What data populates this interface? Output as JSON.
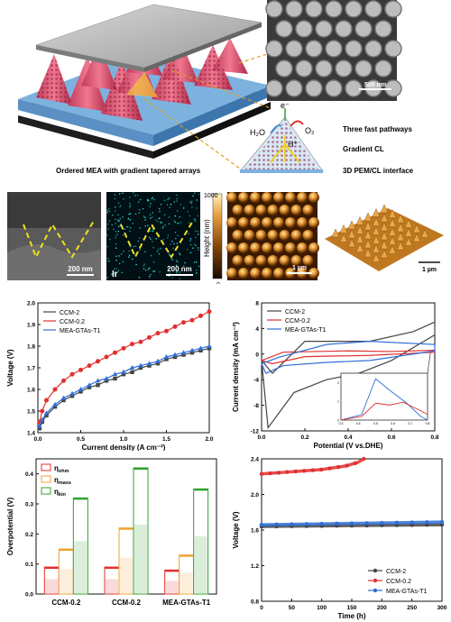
{
  "schematic": {
    "caption": "Ordered MEA with gradient tapered arrays",
    "pathways": "Three fast pathways",
    "gradient": "Gradient CL",
    "interface": "3D PEM/CL interface",
    "h2o": "H₂O",
    "electron": "e⁻",
    "o2": "O₂",
    "proton": "H⁺",
    "sem_scale": "500 nm"
  },
  "micrographs": {
    "sem_scale": "200 nm",
    "eds_scale": "200 nm",
    "eds_element": "Ir",
    "colorbar_label": "Height (nm)",
    "colorbar_max": "1000",
    "colorbar_min": "0",
    "afm_scale": "1 µm",
    "afm3d_scale": "1 µm"
  },
  "colors": {
    "ccm2": "#444444",
    "ccm02": "#e03030",
    "mea": "#2f6fd6",
    "ohm": "#e03030",
    "mass": "#f0a030",
    "kin": "#30a030"
  },
  "chart_data": [
    {
      "type": "line",
      "ylabel": "Voltage (V)",
      "xlabel": "Current density (A cm⁻²)",
      "xlim": [
        0,
        2.0
      ],
      "ylim": [
        1.4,
        2.0
      ],
      "xticks": [
        "0.0",
        "0.5",
        "1.0",
        "1.5",
        "2.0"
      ],
      "yticks": [
        "1.4",
        "1.5",
        "1.6",
        "1.7",
        "1.8",
        "1.9",
        "2.0"
      ],
      "legend": "top-left",
      "x": [
        0.02,
        0.05,
        0.1,
        0.2,
        0.3,
        0.4,
        0.5,
        0.6,
        0.7,
        0.8,
        0.9,
        1.0,
        1.1,
        1.2,
        1.3,
        1.4,
        1.5,
        1.6,
        1.7,
        1.8,
        1.9,
        2.0
      ],
      "series": [
        {
          "name": "CCM-2",
          "color": "#444444",
          "marker": "square",
          "values": [
            1.42,
            1.45,
            1.48,
            1.52,
            1.55,
            1.57,
            1.59,
            1.61,
            1.62,
            1.64,
            1.65,
            1.67,
            1.68,
            1.7,
            1.71,
            1.72,
            1.74,
            1.75,
            1.76,
            1.77,
            1.78,
            1.79
          ]
        },
        {
          "name": "CCM-0.2",
          "color": "#e03030",
          "marker": "circle",
          "values": [
            1.45,
            1.5,
            1.55,
            1.6,
            1.64,
            1.67,
            1.69,
            1.71,
            1.73,
            1.75,
            1.77,
            1.79,
            1.81,
            1.82,
            1.84,
            1.86,
            1.87,
            1.89,
            1.91,
            1.92,
            1.94,
            1.96
          ]
        },
        {
          "name": "MEA-GTAs-T1",
          "color": "#2f6fd6",
          "marker": "triangle",
          "values": [
            1.43,
            1.46,
            1.49,
            1.53,
            1.56,
            1.58,
            1.6,
            1.62,
            1.64,
            1.65,
            1.67,
            1.68,
            1.7,
            1.71,
            1.72,
            1.73,
            1.75,
            1.76,
            1.77,
            1.78,
            1.79,
            1.8
          ]
        }
      ]
    },
    {
      "type": "line",
      "ylabel": "Current density (mA cm⁻²)",
      "xlabel": "Potential (V vs.DHE)",
      "xlim": [
        0,
        0.8
      ],
      "ylim": [
        -12,
        8
      ],
      "xticks": [
        "0.0",
        "0.2",
        "0.4",
        "0.6",
        "0.8"
      ],
      "yticks": [
        "-12",
        "-8",
        "-4",
        "0",
        "4",
        "8"
      ],
      "legend": "top-left",
      "series": [
        {
          "name": "CCM-2",
          "color": "#444444"
        },
        {
          "name": "CCM-0.2",
          "color": "#e03030"
        },
        {
          "name": "MEA-GTAs-T1",
          "color": "#2f6fd6"
        }
      ],
      "inset": {
        "xticks": [
          "0.3",
          "0.4",
          "0.5",
          "0.6",
          "0.7",
          "0.8"
        ],
        "yticks": [
          "0",
          "1",
          "2"
        ]
      }
    },
    {
      "type": "bar",
      "ylabel": "Overpotential (V)",
      "categories": [
        "CCM-0.2",
        "CCM-0.2",
        "MEA-GTAs-T1"
      ],
      "ylim": [
        0,
        0.45
      ],
      "yticks": [
        "0.0",
        "0.1",
        "0.2",
        "0.3",
        "0.4"
      ],
      "legend": "top-left",
      "series": [
        {
          "name": "ηohm",
          "label_main": "η",
          "label_sub": "ohm",
          "color": "#e03030",
          "values": [
            0.09,
            0.09,
            0.08
          ]
        },
        {
          "name": "ηmass",
          "label_main": "η",
          "label_sub": "mass",
          "color": "#f0a030",
          "values": [
            0.15,
            0.22,
            0.13
          ]
        },
        {
          "name": "ηkin",
          "label_main": "η",
          "label_sub": "kin",
          "color": "#30a030",
          "values": [
            0.32,
            0.42,
            0.35
          ]
        }
      ]
    },
    {
      "type": "line",
      "ylabel": "Voltage (V)",
      "xlabel": "Time (h)",
      "xlim": [
        0,
        300
      ],
      "ylim": [
        0.8,
        2.4
      ],
      "xticks": [
        "0",
        "50",
        "100",
        "150",
        "200",
        "250",
        "300"
      ],
      "yticks": [
        "0.8",
        "1.2",
        "1.6",
        "2.0",
        "2.4"
      ],
      "legend": "bottom-right",
      "series": [
        {
          "name": "CCM-2",
          "color": "#444444",
          "x": [
            0,
            300
          ],
          "values": [
            1.64,
            1.66
          ]
        },
        {
          "name": "CCM-0.2",
          "color": "#e03030",
          "x": [
            0,
            20,
            40,
            60,
            80,
            100,
            120,
            140,
            160,
            170
          ],
          "values": [
            2.23,
            2.24,
            2.25,
            2.26,
            2.27,
            2.28,
            2.3,
            2.32,
            2.36,
            2.4
          ]
        },
        {
          "name": "MEA-GTAs-T1",
          "color": "#2f6fd6",
          "x": [
            0,
            300
          ],
          "values": [
            1.66,
            1.69
          ]
        }
      ]
    }
  ]
}
